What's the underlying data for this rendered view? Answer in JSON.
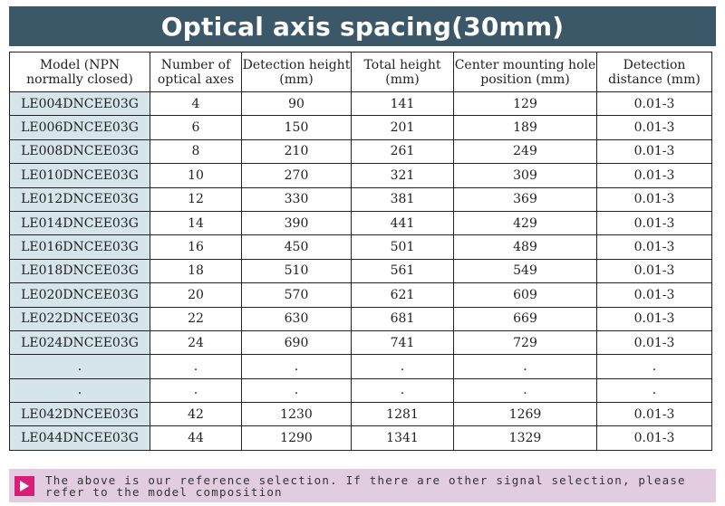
{
  "title": "Optical axis spacing(30mm)",
  "table": {
    "headers": [
      "Model (NPN normally closed)",
      "Number of optical axes",
      "Detection height (mm)",
      "Total height (mm)",
      "Center mounting hole position (mm)",
      "Detection distance (mm)"
    ],
    "rows": [
      [
        "LE004DNCEE03G",
        "4",
        "90",
        "141",
        "129",
        "0.01-3"
      ],
      [
        "LE006DNCEE03G",
        "6",
        "150",
        "201",
        "189",
        "0.01-3"
      ],
      [
        "LE008DNCEE03G",
        "8",
        "210",
        "261",
        "249",
        "0.01-3"
      ],
      [
        "LE010DNCEE03G",
        "10",
        "270",
        "321",
        "309",
        "0.01-3"
      ],
      [
        "LE012DNCEE03G",
        "12",
        "330",
        "381",
        "369",
        "0.01-3"
      ],
      [
        "LE014DNCEE03G",
        "14",
        "390",
        "441",
        "429",
        "0.01-3"
      ],
      [
        "LE016DNCEE03G",
        "16",
        "450",
        "501",
        "489",
        "0.01-3"
      ],
      [
        "LE018DNCEE03G",
        "18",
        "510",
        "561",
        "549",
        "0.01-3"
      ],
      [
        "LE020DNCEE03G",
        "20",
        "570",
        "621",
        "609",
        "0.01-3"
      ],
      [
        "LE022DNCEE03G",
        "22",
        "630",
        "681",
        "669",
        "0.01-3"
      ],
      [
        "LE024DNCEE03G",
        "24",
        "690",
        "741",
        "729",
        "0.01-3"
      ],
      [
        ".",
        ".",
        ".",
        ".",
        ".",
        "."
      ],
      [
        ".",
        ".",
        ".",
        ".",
        ".",
        "."
      ],
      [
        "LE042DNCEE03G",
        "42",
        "1230",
        "1281",
        "1269",
        "0.01-3"
      ],
      [
        "LE044DNCEE03G",
        "44",
        "1290",
        "1341",
        "1329",
        "0.01-3"
      ]
    ]
  },
  "note": {
    "icon": "play-arrow-icon",
    "text": "The above is our reference selection. If there are other signal selection, please refer to the model composition"
  },
  "colors": {
    "title_bg": "#3b5868",
    "model_cell_bg": "#d6e5ea",
    "note_bg": "#e2cde0",
    "note_icon_bg": "#d81e78"
  }
}
